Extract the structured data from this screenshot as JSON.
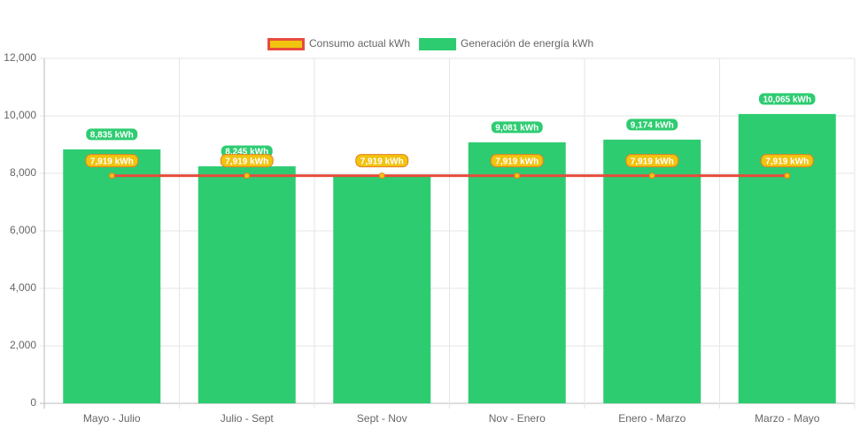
{
  "chart_data": {
    "type": "bar",
    "categories": [
      "Mayo - Julio",
      "Julio - Sept",
      "Sept - Nov",
      "Nov - Enero",
      "Enero - Marzo",
      "Marzo - Mayo"
    ],
    "series": [
      {
        "name": "Consumo actual kWh",
        "type": "line",
        "color": "#e74c3c",
        "point_color": "#f1c40f",
        "values": [
          7919,
          7919,
          7919,
          7919,
          7919,
          7919
        ],
        "value_labels": [
          "7,919 kWh",
          "7,919 kWh",
          "7,919 kWh",
          "7,919 kWh",
          "7,919 kWh",
          "7,919 kWh"
        ]
      },
      {
        "name": "Generación de energía kWh",
        "type": "bar",
        "color": "#2ecc71",
        "values": [
          8835,
          8245,
          7919,
          9081,
          9174,
          10065
        ],
        "value_labels": [
          "8,835 kWh",
          "8,245 kWh",
          "7,919 kWh",
          "9,081 kWh",
          "9,174 kWh",
          "10,065 kWh"
        ]
      }
    ],
    "ylim": [
      0,
      12000
    ],
    "yticks": [
      0,
      {
        "value": 2000,
        "label": "2,000"
      },
      {
        "value": 4000,
        "label": "4,000"
      },
      {
        "value": 6000,
        "label": "6,000"
      },
      {
        "value": 8000,
        "label": "8,000"
      },
      {
        "value": 10000,
        "label": "10,000"
      },
      {
        "value": 12000,
        "label": "12,000"
      }
    ],
    "grid": true
  }
}
